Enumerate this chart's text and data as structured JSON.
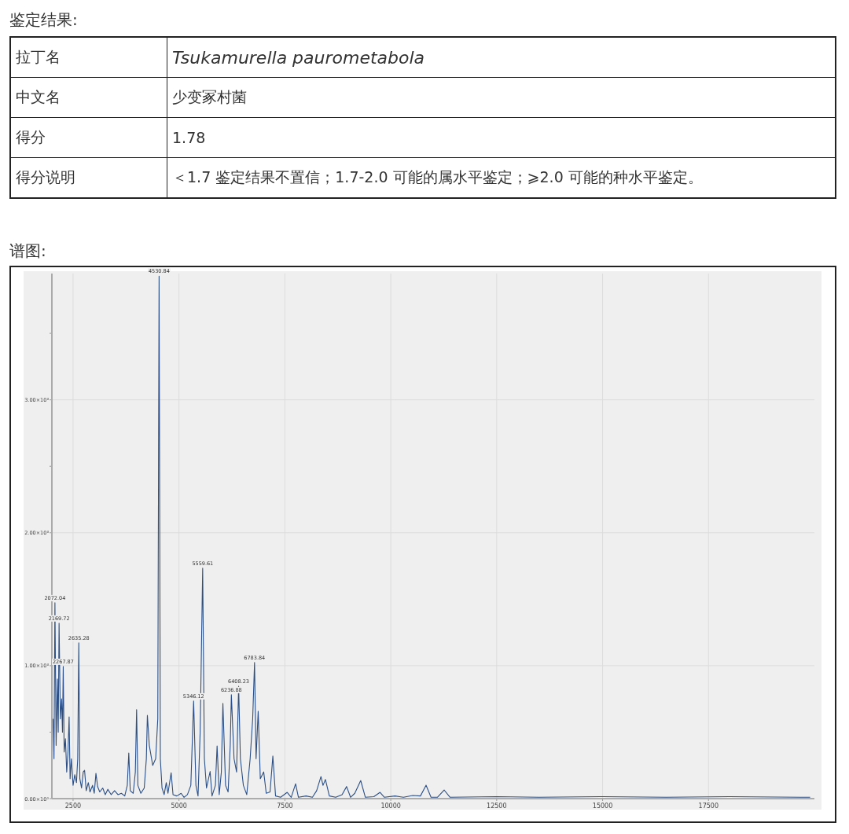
{
  "chart_data": [
    {
      "type": "other",
      "title": "鉴定结果:",
      "categories": [
        "拉丁名",
        "中文名",
        "得分",
        "得分说明"
      ],
      "annotations": [
        "Tsukamurella  paurometabola",
        "少变冢村菌",
        "1.78",
        "＜1.7 鉴定结果不置信；1.7-2.0 可能的属水平鉴定；⩾2.0 可能的种水平鉴定。"
      ]
    },
    {
      "type": "line",
      "title": "谱图:",
      "color": "#2b4f86",
      "grid": true,
      "xlim": [
        2000,
        20000
      ],
      "ylim": [
        0,
        3950
      ],
      "xticks": [
        2500,
        5000,
        7500,
        10000,
        12500,
        15000,
        17500
      ],
      "yticks": [
        {
          "value": 0,
          "label": "0.00×10⁰"
        },
        {
          "value": 500,
          "label": null
        },
        {
          "value": 1000,
          "label": "1.00×10³"
        },
        {
          "value": 1500,
          "label": null
        },
        {
          "value": 2000,
          "label": "2.00×10³"
        },
        {
          "value": 2500,
          "label": null
        },
        {
          "value": 3000,
          "label": "3.00×10³"
        },
        {
          "value": 3500,
          "label": null
        }
      ],
      "x": [
        2030,
        2050,
        2072.04,
        2100,
        2130,
        2150,
        2169.72,
        2200,
        2230,
        2250,
        2267.87,
        2290,
        2320,
        2350,
        2380,
        2407,
        2430,
        2460,
        2500,
        2540,
        2580,
        2610,
        2635.28,
        2660,
        2700,
        2740,
        2772,
        2810,
        2860,
        2900,
        2960,
        3000,
        3040,
        3080,
        3130,
        3200,
        3260,
        3320,
        3400,
        3480,
        3560,
        3640,
        3720,
        3780,
        3815,
        3850,
        3920,
        3970,
        4000,
        4030,
        4100,
        4180,
        4230,
        4254,
        4300,
        4380,
        4450,
        4500,
        4530.84,
        4560,
        4600,
        4650,
        4700,
        4740,
        4815,
        4860,
        4950,
        5050,
        5120,
        5200,
        5280,
        5346.12,
        5400,
        5450,
        5500,
        5559.61,
        5600,
        5650,
        5735,
        5780,
        5860,
        5900,
        5950,
        6000,
        6037,
        6100,
        6160,
        6210,
        6236.88,
        6300,
        6360,
        6408.23,
        6450,
        6520,
        6600,
        6680,
        6740,
        6783.84,
        6820,
        6870,
        6920,
        7000,
        7060,
        7150,
        7216,
        7280,
        7400,
        7555,
        7650,
        7753,
        7820,
        8000,
        8150,
        8250,
        8352,
        8400,
        8457,
        8550,
        8700,
        8850,
        8957,
        9050,
        9150,
        9290,
        9400,
        9600,
        9747,
        9850,
        10100,
        10300,
        10519,
        10700,
        10833,
        10950,
        11100,
        11259,
        11400,
        12500,
        13500,
        15000,
        16500,
        18000,
        19900
      ],
      "values": [
        600,
        300,
        1473,
        400,
        900,
        500,
        1320,
        600,
        750,
        500,
        994,
        350,
        450,
        200,
        350,
        615,
        150,
        300,
        100,
        180,
        120,
        300,
        1172,
        150,
        80,
        200,
        213,
        60,
        120,
        50,
        100,
        40,
        190,
        90,
        50,
        80,
        30,
        70,
        30,
        60,
        30,
        40,
        20,
        100,
        343,
        60,
        40,
        200,
        669,
        100,
        40,
        80,
        300,
        627,
        400,
        250,
        300,
        600,
        3930,
        300,
        80,
        30,
        120,
        40,
        195,
        30,
        20,
        40,
        10,
        30,
        100,
        734,
        100,
        20,
        500,
        1734,
        300,
        80,
        204,
        20,
        100,
        396,
        30,
        200,
        716,
        100,
        50,
        400,
        781,
        300,
        200,
        846,
        300,
        100,
        30,
        300,
        600,
        1024,
        300,
        657,
        150,
        201,
        40,
        50,
        320,
        20,
        10,
        47,
        10,
        112,
        10,
        20,
        10,
        60,
        166,
        100,
        144,
        20,
        10,
        30,
        91,
        10,
        40,
        136,
        10,
        15,
        47,
        10,
        20,
        10,
        24,
        20,
        101,
        10,
        10,
        65,
        10,
        15,
        10,
        15,
        10,
        15,
        10
      ],
      "annotations": [
        {
          "text": "2072.04",
          "x": 2072.04,
          "y": 1473
        },
        {
          "text": "2169.72",
          "x": 2169.72,
          "y": 1320
        },
        {
          "text": "2267.87",
          "x": 2267.87,
          "y": 994
        },
        {
          "text": "2635.28",
          "x": 2635.28,
          "y": 1172
        },
        {
          "text": "4530.84",
          "x": 4530.84,
          "y": 3930
        },
        {
          "text": "5346.12",
          "x": 5346.12,
          "y": 734
        },
        {
          "text": "5559.61",
          "x": 5559.61,
          "y": 1734
        },
        {
          "text": "6236.88",
          "x": 6236.88,
          "y": 781
        },
        {
          "text": "6408.23",
          "x": 6408.23,
          "y": 846
        },
        {
          "text": "6783.84",
          "x": 6783.84,
          "y": 1024
        }
      ]
    }
  ]
}
